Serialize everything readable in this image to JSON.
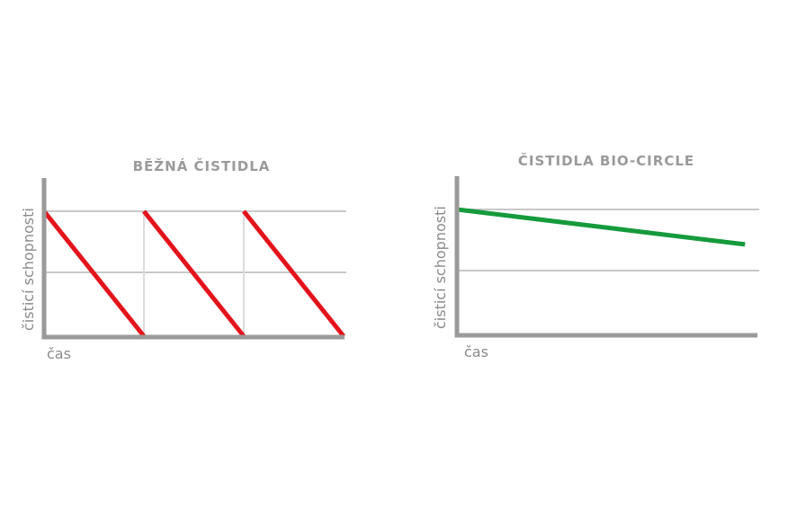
{
  "chart_data": [
    {
      "type": "line",
      "title": "BĚŽNÁ ČISTIDLA",
      "xlabel": "čas",
      "ylabel": "čisticí schopnosti",
      "grid": true,
      "ylim": [
        0,
        1
      ],
      "series": [
        {
          "values": [
            [
              0,
              1
            ],
            [
              1,
              0
            ]
          ],
          "color": "#e3131b"
        },
        {
          "values": [
            [
              1,
              1
            ],
            [
              2,
              0
            ]
          ],
          "color": "#e3131b"
        },
        {
          "values": [
            [
              2,
              1
            ],
            [
              3,
              0
            ]
          ],
          "color": "#e3131b"
        }
      ]
    },
    {
      "type": "line",
      "title": "ČISTIDLA BIO-CIRCLE",
      "xlabel": "čas",
      "ylabel": "čisticí schopnosti",
      "grid": true,
      "ylim": [
        0,
        1
      ],
      "series": [
        {
          "values": [
            [
              0,
              1
            ],
            [
              1,
              0.72
            ]
          ],
          "color": "#159a3c"
        }
      ]
    }
  ]
}
